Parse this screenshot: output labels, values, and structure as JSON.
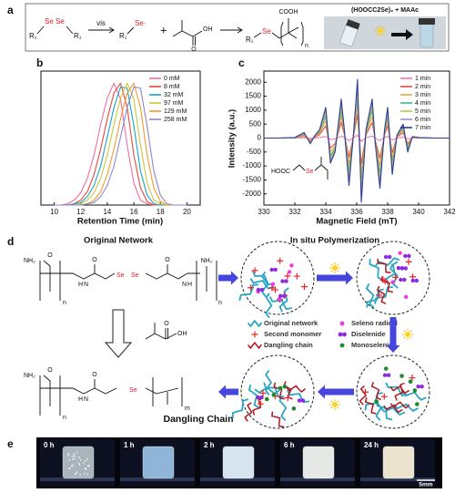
{
  "panel_a": {
    "label": "a",
    "r1": "R₁",
    "se": "Se",
    "vis": "vis",
    "radical": "Se·",
    "plus": "+",
    "oh": "OH",
    "o": "O",
    "cooh": "COOH",
    "n": "n",
    "photo_caption": "(HOOCC2Se)₂ + MAAc"
  },
  "chart_data": [
    {
      "type": "line",
      "label": "b",
      "x_label": "Retention Time (min)",
      "x": [
        10,
        10.5,
        11,
        11.5,
        12,
        12.5,
        13,
        13.5,
        14,
        14.5,
        15,
        15.5,
        16,
        16.5,
        17,
        17.5,
        18,
        18.5,
        19,
        19.5,
        20
      ],
      "series": [
        {
          "name": "0 mM",
          "color": "#f06ea0",
          "values": [
            0,
            0,
            0.01,
            0.04,
            0.1,
            0.22,
            0.41,
            0.66,
            0.88,
            1.0,
            0.87,
            0.49,
            0.18,
            0.04,
            0.01,
            0,
            0,
            0,
            0,
            0,
            0
          ]
        },
        {
          "name": "8 mM",
          "color": "#e8473a",
          "values": [
            0,
            0,
            0,
            0.01,
            0.04,
            0.11,
            0.25,
            0.46,
            0.71,
            0.92,
            1.0,
            0.8,
            0.41,
            0.14,
            0.03,
            0,
            0,
            0,
            0,
            0,
            0
          ]
        },
        {
          "name": "32 mM",
          "color": "#1ba3c6",
          "values": [
            0,
            0,
            0,
            0.01,
            0.02,
            0.07,
            0.16,
            0.32,
            0.56,
            0.8,
            0.97,
            0.96,
            0.65,
            0.28,
            0.08,
            0.01,
            0,
            0,
            0,
            0,
            0
          ]
        },
        {
          "name": "97 mM",
          "color": "#c9c93a",
          "values": [
            0,
            0,
            0,
            0,
            0.01,
            0.04,
            0.1,
            0.22,
            0.41,
            0.66,
            0.88,
            1.0,
            0.87,
            0.49,
            0.18,
            0.04,
            0.01,
            0,
            0,
            0,
            0
          ]
        },
        {
          "name": "129 mM",
          "color": "#f39b2e",
          "values": [
            0,
            0,
            0,
            0,
            0,
            0.01,
            0.04,
            0.11,
            0.25,
            0.46,
            0.71,
            0.92,
            1.0,
            0.8,
            0.41,
            0.14,
            0.03,
            0,
            0,
            0,
            0
          ]
        },
        {
          "name": "258 mM",
          "color": "#8f86c9",
          "values": [
            0,
            0,
            0,
            0,
            0,
            0.01,
            0.02,
            0.07,
            0.16,
            0.32,
            0.56,
            0.8,
            0.97,
            0.96,
            0.65,
            0.28,
            0.08,
            0.01,
            0,
            0,
            0
          ]
        }
      ],
      "xlim": [
        9,
        21
      ],
      "xticks": [
        10,
        12,
        14,
        16,
        18,
        20
      ],
      "ylim": [
        0,
        1.1
      ],
      "legend": "upper right"
    },
    {
      "type": "line",
      "label": "c",
      "x_label": "Magnetic Field (mT)",
      "y_label": "Intensity (a.u.)",
      "x": [
        330,
        331,
        332,
        332.6,
        333,
        333.3,
        333.6,
        334,
        334.3,
        334.6,
        335,
        335.2,
        335.5,
        335.8,
        336.05,
        336.3,
        336.6,
        337,
        337.2,
        337.5,
        337.8,
        338,
        338.3,
        338.6,
        339,
        339.3,
        339.6,
        340,
        341,
        342
      ],
      "series": [
        {
          "name": "1 min",
          "color": "#f07aa6",
          "values": [
            0,
            0,
            0,
            10,
            -10,
            0,
            20,
            60,
            -50,
            -30,
            70,
            20,
            -90,
            10,
            110,
            -120,
            20,
            70,
            -10,
            -90,
            20,
            60,
            -70,
            0,
            30,
            -30,
            0,
            0,
            0,
            0
          ]
        },
        {
          "name": "2 min",
          "color": "#e64b3c",
          "values": [
            0,
            0,
            10,
            80,
            -80,
            40,
            120,
            440,
            -360,
            -200,
            560,
            120,
            -680,
            80,
            840,
            -920,
            120,
            560,
            -80,
            -720,
            120,
            440,
            -520,
            40,
            200,
            -200,
            20,
            10,
            0,
            0
          ]
        },
        {
          "name": "3 min",
          "color": "#f3a23a",
          "values": [
            0,
            0,
            10,
            110,
            -110,
            60,
            170,
            610,
            -500,
            -280,
            770,
            170,
            -940,
            110,
            1160,
            -1270,
            170,
            770,
            -110,
            -990,
            170,
            610,
            -720,
            60,
            280,
            -280,
            30,
            10,
            0,
            0
          ]
        },
        {
          "name": "4 min",
          "color": "#3bb58a",
          "values": [
            0,
            0,
            10,
            140,
            -140,
            70,
            210,
            770,
            -630,
            -350,
            980,
            210,
            -1190,
            140,
            1470,
            -1610,
            210,
            980,
            -140,
            -1260,
            210,
            770,
            -910,
            70,
            350,
            -350,
            40,
            10,
            0,
            0
          ]
        },
        {
          "name": "5 min",
          "color": "#c5c23a",
          "values": [
            0,
            0,
            20,
            160,
            -160,
            80,
            240,
            880,
            -720,
            -400,
            1120,
            240,
            -1360,
            160,
            1680,
            -1840,
            240,
            1120,
            -160,
            -1440,
            240,
            880,
            -1040,
            80,
            400,
            -400,
            40,
            20,
            0,
            0
          ]
        },
        {
          "name": "6 min",
          "color": "#a18fd0",
          "values": [
            0,
            0,
            20,
            180,
            -180,
            90,
            270,
            990,
            -810,
            -450,
            1260,
            270,
            -1530,
            180,
            1890,
            -2070,
            270,
            1260,
            -180,
            -1620,
            270,
            990,
            -1170,
            90,
            450,
            -450,
            50,
            20,
            0,
            0
          ]
        },
        {
          "name": "7 min",
          "color": "#2b3f95",
          "values": [
            0,
            0,
            20,
            200,
            -200,
            100,
            300,
            1100,
            -900,
            -500,
            1400,
            300,
            -1700,
            200,
            2100,
            -2300,
            300,
            1400,
            -200,
            -1800,
            300,
            1100,
            -1300,
            100,
            500,
            -500,
            50,
            20,
            0,
            0
          ]
        }
      ],
      "xlim": [
        330,
        342
      ],
      "xticks": [
        330,
        332,
        334,
        336,
        338,
        340,
        342
      ],
      "ylim": [
        -2400,
        2400
      ],
      "yticks": [
        -2000,
        -1500,
        -1000,
        -500,
        0,
        500,
        1000,
        1500,
        2000
      ],
      "legend": "upper right",
      "annotations": [
        "HOOC",
        "Se"
      ]
    }
  ],
  "panel_d": {
    "label": "d",
    "left_title": "Original Network",
    "right_title": "In situ Polymerization",
    "dangling_title": "Dangling Chain",
    "legend": [
      "Original network",
      "Second monomer",
      "Dangling chain",
      "Seleno radical",
      "Diselenide",
      "Monoselenide"
    ],
    "atoms": {
      "nh2": "NH₂",
      "o": "O",
      "h": "H",
      "n": "N",
      "se": "Se",
      "oh": "OH",
      "n_repeat": "n",
      "m_repeat": "m"
    }
  },
  "panel_e": {
    "label": "e",
    "times": [
      "0 h",
      "1 h",
      "2 h",
      "6 h",
      "24 h"
    ],
    "scale": "5mm"
  }
}
